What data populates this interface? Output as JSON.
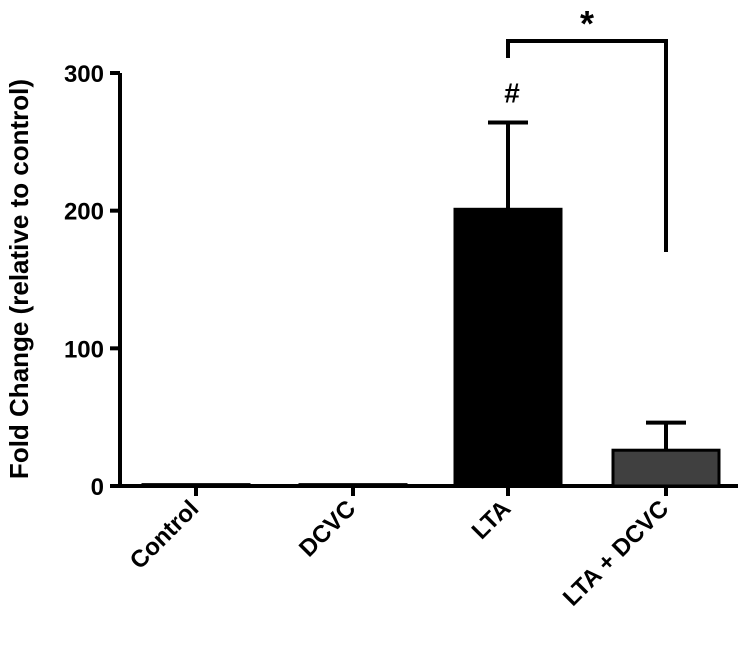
{
  "chart_data": {
    "type": "bar",
    "categories": [
      "Control",
      "DCVC",
      "LTA",
      "LTA + DCVC"
    ],
    "values": [
      1,
      1,
      201,
      26
    ],
    "errors": [
      0,
      0,
      63,
      20
    ],
    "bar_colors": [
      "#000000",
      "#000000",
      "#000000",
      "#404040"
    ],
    "ylabel": "Fold Change (relative to control)",
    "xlabel": "",
    "ylim": [
      0,
      300
    ],
    "yticks": [
      0,
      100,
      200,
      300
    ],
    "annotations": [
      {
        "text": "#",
        "category": "LTA"
      },
      {
        "text": "*",
        "between": [
          "LTA",
          "LTA + DCVC"
        ]
      }
    ]
  }
}
